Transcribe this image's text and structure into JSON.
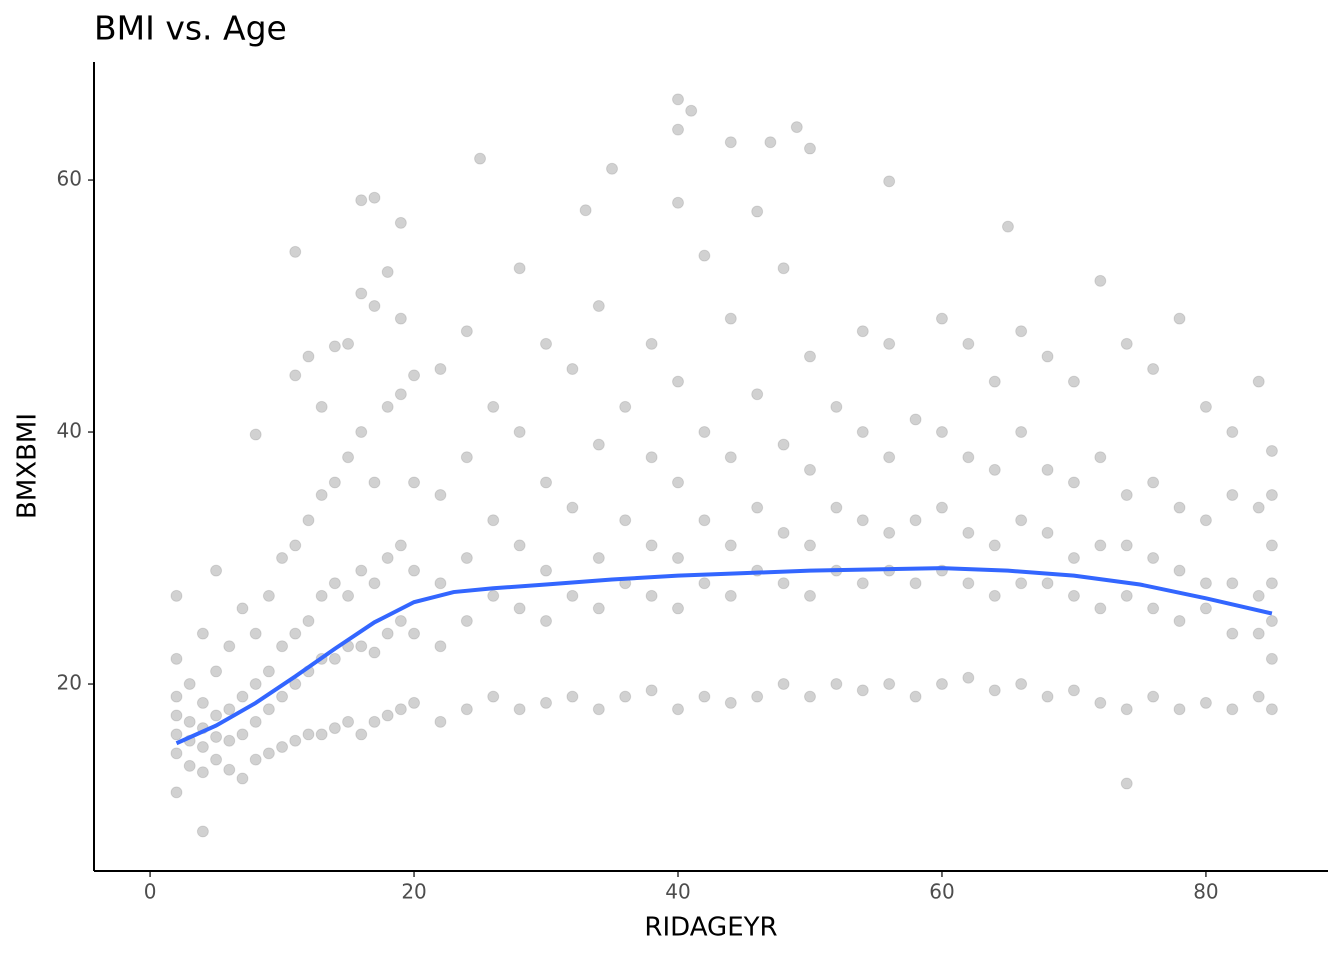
{
  "chart_data": {
    "type": "scatter",
    "title": "BMI vs. Age",
    "x_label": "RIDAGEYR",
    "y_label": "BMXBMI",
    "xlim": [
      -4.25,
      89.25
    ],
    "ylim": [
      5.16,
      69.37
    ],
    "xticks": [
      0,
      20,
      40,
      60,
      80
    ],
    "yticks": [
      20,
      40,
      60
    ],
    "grid": false,
    "points": {
      "color": "#000000",
      "x": [
        40,
        41,
        40,
        49,
        50,
        44,
        47,
        25,
        35,
        56,
        16,
        17,
        40,
        19,
        33,
        46,
        65,
        11,
        4,
        74,
        2,
        2,
        2,
        2,
        2,
        2,
        2,
        3,
        3,
        3,
        3,
        4,
        4,
        4,
        4,
        4,
        5,
        5,
        5,
        5,
        5,
        6,
        6,
        6,
        6,
        7,
        7,
        7,
        7,
        8,
        8,
        8,
        8,
        8,
        9,
        9,
        9,
        9,
        10,
        10,
        10,
        10,
        11,
        11,
        11,
        11,
        11,
        12,
        12,
        12,
        12,
        12,
        13,
        13,
        13,
        13,
        13,
        14,
        14,
        14,
        14,
        14,
        15,
        15,
        15,
        15,
        15,
        16,
        16,
        16,
        16,
        16,
        17,
        17,
        17,
        17,
        17,
        18,
        18,
        18,
        18,
        18,
        19,
        19,
        19,
        19,
        19,
        20,
        20,
        20,
        20,
        20,
        22,
        22,
        22,
        22,
        22,
        24,
        24,
        24,
        24,
        24,
        26,
        26,
        26,
        26,
        28,
        28,
        28,
        28,
        28,
        30,
        30,
        30,
        30,
        30,
        32,
        32,
        32,
        32,
        34,
        34,
        34,
        34,
        34,
        36,
        36,
        36,
        36,
        38,
        38,
        38,
        38,
        38,
        40,
        40,
        40,
        40,
        40,
        42,
        42,
        42,
        42,
        42,
        44,
        44,
        44,
        44,
        44,
        46,
        46,
        46,
        46,
        48,
        48,
        48,
        48,
        48,
        50,
        50,
        50,
        50,
        50,
        52,
        52,
        52,
        52,
        54,
        54,
        54,
        54,
        54,
        56,
        56,
        56,
        56,
        56,
        58,
        58,
        58,
        58,
        60,
        60,
        60,
        60,
        60,
        62,
        62,
        62,
        62,
        62,
        64,
        64,
        64,
        64,
        64,
        66,
        66,
        66,
        66,
        66,
        68,
        68,
        68,
        68,
        68,
        70,
        70,
        70,
        70,
        70,
        72,
        72,
        72,
        72,
        72,
        74,
        74,
        74,
        74,
        74,
        76,
        76,
        76,
        76,
        76,
        78,
        78,
        78,
        78,
        78,
        80,
        80,
        80,
        80,
        80,
        82,
        82,
        82,
        82,
        82,
        84,
        84,
        84,
        84,
        84,
        85,
        85,
        85,
        85,
        85,
        85,
        85
      ],
      "values": [
        66.4,
        65.5,
        64,
        64.2,
        62.5,
        63,
        63,
        61.7,
        60.9,
        59.9,
        58.4,
        58.6,
        58.2,
        56.6,
        57.6,
        57.5,
        56.3,
        54.3,
        8.3,
        12.1,
        11.4,
        14.5,
        16,
        17.5,
        19,
        22,
        27,
        13.5,
        15.5,
        17,
        20,
        13,
        15,
        16.5,
        18.5,
        24,
        14,
        15.8,
        17.5,
        21,
        29,
        13.2,
        15.5,
        18,
        23,
        12.5,
        16,
        19,
        26,
        14,
        17,
        20,
        24,
        39.8,
        14.5,
        18,
        21,
        27,
        15,
        19,
        23,
        30,
        15.5,
        20,
        24,
        31,
        44.5,
        16,
        21,
        25,
        33,
        46,
        16,
        22,
        27,
        35,
        42,
        16.5,
        22,
        28,
        36,
        46.8,
        17,
        23,
        27,
        38,
        47,
        16,
        23,
        29,
        40,
        51,
        17,
        22.5,
        28,
        36,
        50,
        17.5,
        24,
        30,
        42,
        52.7,
        18,
        25,
        31,
        43,
        49,
        18.5,
        24,
        29,
        36,
        44.5,
        17,
        23,
        28,
        35,
        45,
        18,
        25,
        30,
        38,
        48,
        19,
        27,
        33,
        42,
        18,
        26,
        31,
        40,
        53,
        18.5,
        25,
        29,
        36,
        47,
        19,
        27,
        34,
        45,
        18,
        26,
        30,
        39,
        50,
        19,
        28,
        33,
        42,
        19.5,
        27,
        31,
        38,
        47,
        18,
        26,
        30,
        36,
        44,
        19,
        28,
        33,
        40,
        54,
        18.5,
        27,
        31,
        38,
        49,
        19,
        29,
        34,
        43,
        20,
        28,
        32,
        39,
        53,
        19,
        27,
        31,
        37,
        46,
        20,
        29,
        34,
        42,
        19.5,
        28,
        33,
        40,
        48,
        20,
        29,
        32,
        38,
        47,
        19,
        28,
        33,
        41,
        20,
        29,
        34,
        40,
        49,
        20.5,
        28,
        32,
        38,
        47,
        19.5,
        27,
        31,
        37,
        44,
        20,
        28,
        33,
        40,
        48,
        19,
        28,
        32,
        37,
        46,
        19.5,
        27,
        30,
        36,
        44,
        18.5,
        26,
        31,
        38,
        52,
        18,
        27,
        31,
        35,
        47,
        19,
        26,
        30,
        36,
        45,
        18,
        25,
        29,
        34,
        49,
        18.5,
        26,
        28,
        33,
        42,
        18,
        24,
        28,
        35,
        40,
        19,
        24,
        27,
        34,
        44,
        18,
        22,
        25,
        28,
        31,
        35,
        38.5
      ]
    },
    "smooth": {
      "color": "#3366ff",
      "x": [
        2,
        5,
        8,
        11,
        14,
        17,
        20,
        23,
        26,
        30,
        35,
        40,
        45,
        50,
        55,
        60,
        65,
        70,
        75,
        80,
        85
      ],
      "values": [
        15.3,
        16.7,
        18.5,
        20.6,
        22.8,
        24.9,
        26.5,
        27.3,
        27.6,
        27.9,
        28.3,
        28.6,
        28.8,
        29.0,
        29.1,
        29.2,
        29.0,
        28.6,
        27.9,
        26.8,
        25.6
      ]
    }
  }
}
